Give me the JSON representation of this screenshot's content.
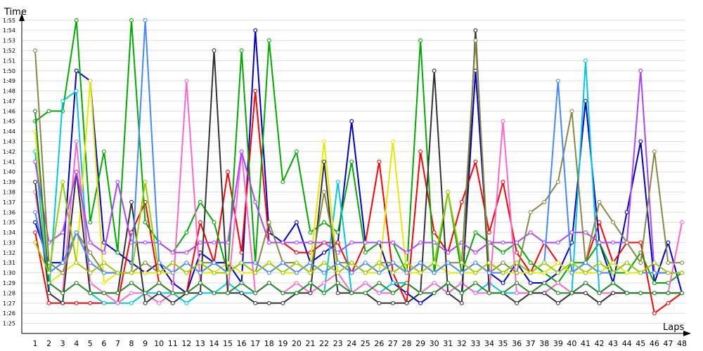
{
  "chart_data": {
    "type": "line",
    "ylabel": "Time",
    "xlabel": "Laps",
    "y_axis_unit": "minutes:seconds",
    "x": [
      1,
      2,
      3,
      4,
      5,
      6,
      7,
      8,
      9,
      10,
      11,
      12,
      13,
      14,
      15,
      16,
      17,
      18,
      19,
      20,
      21,
      22,
      23,
      24,
      25,
      26,
      27,
      28,
      29,
      30,
      31,
      32,
      33,
      34,
      35,
      36,
      37,
      38,
      39,
      40,
      41,
      42,
      43,
      44,
      45,
      46,
      47,
      48
    ],
    "xlim": [
      1,
      48
    ],
    "ylim": [
      "1:24",
      "1:57"
    ],
    "yticks": [
      "1:25",
      "1:26",
      "1:27",
      "1:28",
      "1:29",
      "1:30",
      "1:31",
      "1:32",
      "1:33",
      "1:34",
      "1:35",
      "1:36",
      "1:37",
      "1:38",
      "1:39",
      "1:40",
      "1:41",
      "1:42",
      "1:43",
      "1:44",
      "1:45",
      "1:46",
      "1:47",
      "1:48",
      "1:49",
      "1:50",
      "1:51",
      "1:52",
      "1:53",
      "1:54",
      "1:55"
    ],
    "grid": "horizontal",
    "legend": "none",
    "marker": "open-circle",
    "series": [
      {
        "color": "#0000cc",
        "values": [
          "1:35",
          "1:31",
          "1:31",
          "1:50",
          "1:49",
          "1:33",
          "1:32",
          "1:31",
          "1:30",
          "1:31",
          "1:29",
          "1:28",
          "1:32",
          "1:31",
          "1:31",
          "1:29",
          "1:54",
          "1:34",
          "1:33",
          "1:35",
          "1:31",
          "1:32",
          "1:33",
          "1:45",
          "1:33",
          "1:33",
          "1:29",
          "1:28",
          "1:27",
          "1:28",
          "1:29",
          "1:28",
          "1:50",
          "1:30",
          "1:29",
          "1:31",
          "1:29",
          "1:29",
          "1:30",
          "1:33",
          "1:47",
          "1:33",
          "1:29",
          "1:36",
          "1:43",
          "1:29",
          "1:33",
          "1:28"
        ]
      },
      {
        "color": "#ff0000",
        "values": [
          "1:34",
          "1:27",
          "1:27",
          "1:27",
          "1:27",
          "1:27",
          "1:27",
          "1:34",
          "1:37",
          "1:29",
          "1:28",
          "1:28",
          "1:35",
          "1:31",
          "1:40",
          "1:32",
          "1:48",
          "1:33",
          "1:33",
          "1:32",
          "1:32",
          "1:33",
          "1:33",
          "1:30",
          "1:33",
          "1:41",
          "1:30",
          "1:27",
          "1:42",
          "1:34",
          "1:32",
          "1:37",
          "1:41",
          "1:34",
          "1:39",
          "1:32",
          "1:30",
          "1:33",
          "1:31",
          "1:30",
          "1:31",
          "1:35",
          "1:31",
          "1:33",
          "1:33",
          "1:26",
          "1:27",
          "1:28"
        ]
      },
      {
        "color": "#00aa00",
        "values": [
          "1:45",
          "1:46",
          "1:46",
          "1:55",
          "1:35",
          "1:42",
          "1:32",
          "1:55",
          "1:35",
          "1:33",
          "1:32",
          "1:34",
          "1:37",
          "1:35",
          "1:30",
          "1:52",
          "1:31",
          "1:53",
          "1:39",
          "1:42",
          "1:34",
          "1:35",
          "1:34",
          "1:41",
          "1:32",
          "1:33",
          "1:33",
          "1:30",
          "1:53",
          "1:30",
          "1:38",
          "1:30",
          "1:34",
          "1:33",
          "1:32",
          "1:33",
          "1:31",
          "1:30",
          "1:29",
          "1:31",
          "1:31",
          "1:33",
          "1:30",
          "1:30",
          "1:32",
          "1:29",
          "1:29",
          "1:30"
        ]
      },
      {
        "color": "#00c8e0",
        "values": [
          "1:42",
          "1:28",
          "1:47",
          "1:48",
          "1:28",
          "1:27",
          "1:27",
          "1:27",
          "1:28",
          "1:28",
          "1:28",
          "1:27",
          "1:28",
          "1:28",
          "1:29",
          "1:28",
          "1:28",
          "1:29",
          "1:28",
          "1:28",
          "1:29",
          "1:28",
          "1:39",
          "1:28",
          "1:29",
          "1:28",
          "1:29",
          "1:29",
          "1:28",
          "1:29",
          "1:28",
          "1:29",
          "1:28",
          "1:29",
          "1:28",
          "1:28",
          "1:28",
          "1:28",
          "1:29",
          "1:28",
          "1:51",
          "1:28",
          "1:29",
          "1:28",
          "1:28",
          "1:28",
          "1:28",
          "1:28"
        ]
      },
      {
        "color": "#e8e800",
        "values": [
          "1:44",
          "1:29",
          "1:30",
          "1:31",
          "1:49",
          "1:29",
          "1:30",
          "1:30",
          "1:30",
          "1:30",
          "1:30",
          "1:31",
          "1:30",
          "1:30",
          "1:31",
          "1:30",
          "1:30",
          "1:31",
          "1:30",
          "1:30",
          "1:31",
          "1:43",
          "1:30",
          "1:31",
          "1:30",
          "1:30",
          "1:43",
          "1:30",
          "1:30",
          "1:31",
          "1:30",
          "1:30",
          "1:30",
          "1:31",
          "1:30",
          "1:30",
          "1:30",
          "1:30",
          "1:31",
          "1:30",
          "1:30",
          "1:30",
          "1:31",
          "1:30",
          "1:30",
          "1:30",
          "1:30",
          "1:30"
        ]
      },
      {
        "color": "#ff66cc",
        "values": [
          "1:38",
          "1:29",
          "1:28",
          "1:43",
          "1:29",
          "1:28",
          "1:27",
          "1:28",
          "1:28",
          "1:27",
          "1:28",
          "1:49",
          "1:29",
          "1:28",
          "1:28",
          "1:42",
          "1:28",
          "1:29",
          "1:28",
          "1:29",
          "1:28",
          "1:29",
          "1:30",
          "1:28",
          "1:29",
          "1:28",
          "1:28",
          "1:29",
          "1:28",
          "1:29",
          "1:28",
          "1:29",
          "1:28",
          "1:28",
          "1:45",
          "1:28",
          "1:28",
          "1:28",
          "1:29",
          "1:28",
          "1:29",
          "1:28",
          "1:28",
          "1:28",
          "1:28",
          "1:28",
          "1:28",
          "1:35"
        ]
      },
      {
        "color": "#333333",
        "values": [
          "1:39",
          "1:28",
          "1:27",
          "1:40",
          "1:28",
          "1:28",
          "1:28",
          "1:37",
          "1:27",
          "1:28",
          "1:27",
          "1:28",
          "1:28",
          "1:52",
          "1:28",
          "1:28",
          "1:27",
          "1:27",
          "1:27",
          "1:28",
          "1:28",
          "1:41",
          "1:28",
          "1:28",
          "1:28",
          "1:27",
          "1:27",
          "1:27",
          "1:28",
          "1:50",
          "1:28",
          "1:27",
          "1:54",
          "1:28",
          "1:28",
          "1:27",
          "1:28",
          "1:28",
          "1:27",
          "1:28",
          "1:28",
          "1:27",
          "1:28",
          "1:28",
          "1:28",
          "1:28",
          "1:28",
          "1:28"
        ]
      },
      {
        "color": "#aa44ff",
        "values": [
          "1:41",
          "1:33",
          "1:34",
          "1:40",
          "1:33",
          "1:32",
          "1:39",
          "1:33",
          "1:33",
          "1:33",
          "1:32",
          "1:32",
          "1:33",
          "1:33",
          "1:33",
          "1:42",
          "1:37",
          "1:33",
          "1:33",
          "1:33",
          "1:33",
          "1:33",
          "1:32",
          "1:33",
          "1:33",
          "1:33",
          "1:33",
          "1:32",
          "1:33",
          "1:33",
          "1:32",
          "1:33",
          "1:32",
          "1:33",
          "1:33",
          "1:33",
          "1:34",
          "1:33",
          "1:33",
          "1:34",
          "1:34",
          "1:33",
          "1:33",
          "1:33",
          "1:50",
          "1:30",
          "1:30",
          "1:30"
        ]
      },
      {
        "color": "#888844",
        "values": [
          "1:52",
          "1:31",
          "1:30",
          "1:34",
          "1:32",
          "1:30",
          "1:30",
          "1:30",
          "1:31",
          "1:30",
          "1:31",
          "1:30",
          "1:31",
          "1:31",
          "1:30",
          "1:31",
          "1:30",
          "1:35",
          "1:31",
          "1:31",
          "1:30",
          "1:38",
          "1:31",
          "1:31",
          "1:30",
          "1:31",
          "1:31",
          "1:30",
          "1:31",
          "1:30",
          "1:31",
          "1:31",
          "1:53",
          "1:30",
          "1:31",
          "1:30",
          "1:36",
          "1:37",
          "1:39",
          "1:46",
          "1:31",
          "1:37",
          "1:35",
          "1:33",
          "1:31",
          "1:42",
          "1:31",
          "1:31"
        ]
      },
      {
        "color": "#4488ff",
        "values": [
          "1:36",
          "1:30",
          "1:31",
          "1:34",
          "1:31",
          "1:30",
          "1:30",
          "1:30",
          "1:55",
          "1:31",
          "1:30",
          "1:31",
          "1:30",
          "1:31",
          "1:30",
          "1:31",
          "1:31",
          "1:30",
          "1:31",
          "1:30",
          "1:31",
          "1:30",
          "1:31",
          "1:30",
          "1:31",
          "1:30",
          "1:31",
          "1:30",
          "1:31",
          "1:30",
          "1:31",
          "1:30",
          "1:31",
          "1:30",
          "1:30",
          "1:31",
          "1:30",
          "1:31",
          "1:49",
          "1:30",
          "1:31",
          "1:30",
          "1:30",
          "1:31",
          "1:30",
          "1:30",
          "1:30",
          "1:30"
        ]
      },
      {
        "color": "#228822",
        "values": [
          "1:46",
          "1:29",
          "1:28",
          "1:29",
          "1:28",
          "1:28",
          "1:28",
          "1:29",
          "1:28",
          "1:29",
          "1:28",
          "1:28",
          "1:29",
          "1:28",
          "1:28",
          "1:29",
          "1:28",
          "1:29",
          "1:28",
          "1:28",
          "1:29",
          "1:28",
          "1:29",
          "1:28",
          "1:28",
          "1:29",
          "1:28",
          "1:29",
          "1:28",
          "1:28",
          "1:29",
          "1:28",
          "1:29",
          "1:28",
          "1:28",
          "1:29",
          "1:28",
          "1:29",
          "1:28",
          "1:28",
          "1:29",
          "1:28",
          "1:29",
          "1:28",
          "1:28",
          "1:28",
          "1:28",
          "1:28"
        ]
      },
      {
        "color": "#99cc00",
        "values": [
          "1:33",
          "1:30",
          "1:39",
          "1:31",
          "1:30",
          "1:31",
          "1:30",
          "1:30",
          "1:39",
          "1:30",
          "1:31",
          "1:30",
          "1:31",
          "1:30",
          "1:30",
          "1:31",
          "1:30",
          "1:31",
          "1:30",
          "1:31",
          "1:30",
          "1:31",
          "1:30",
          "1:31",
          "1:30",
          "1:31",
          "1:30",
          "1:31",
          "1:30",
          "1:31",
          "1:38",
          "1:31",
          "1:30",
          "1:31",
          "1:30",
          "1:31",
          "1:30",
          "1:31",
          "1:30",
          "1:31",
          "1:30",
          "1:31",
          "1:30",
          "1:31",
          "1:30",
          "1:31",
          "1:30",
          "1:30"
        ]
      }
    ]
  }
}
